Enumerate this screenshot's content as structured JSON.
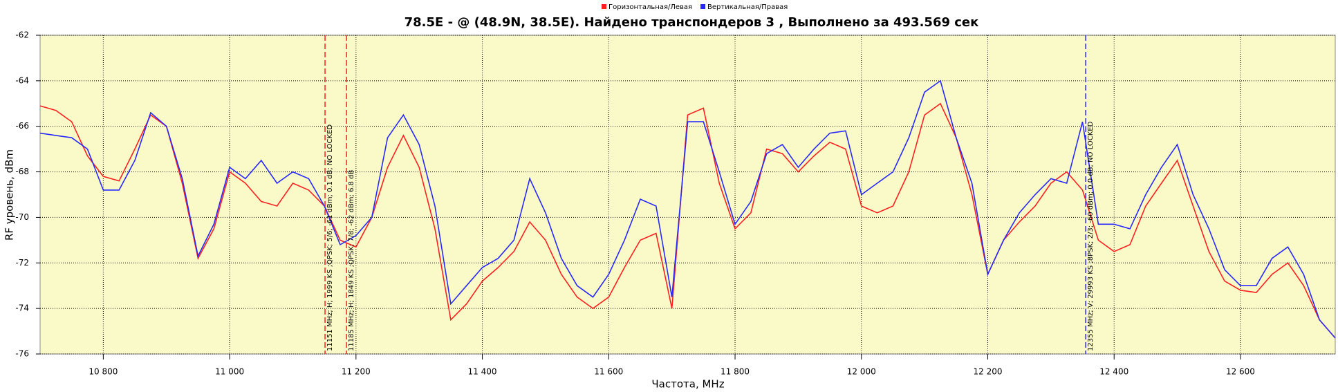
{
  "chart_data": {
    "type": "line",
    "title": "78.5E -  @  (48.9N, 38.5E). Найдено транспондеров 3 , Выполнено за 493.569 сек",
    "x_label": "Частота, MHz",
    "y_label": "RF уровень, dBm",
    "xlim": [
      10700,
      12750
    ],
    "ylim": [
      -76,
      -62
    ],
    "xticks": [
      {
        "value": 10800,
        "label": "10 800"
      },
      {
        "value": 11000,
        "label": "11 000"
      },
      {
        "value": 11200,
        "label": "11 200"
      },
      {
        "value": 11400,
        "label": "11 400"
      },
      {
        "value": 11600,
        "label": "11 600"
      },
      {
        "value": 11800,
        "label": "11 800"
      },
      {
        "value": 12000,
        "label": "12 000"
      },
      {
        "value": 12200,
        "label": "12 200"
      },
      {
        "value": 12400,
        "label": "12 400"
      },
      {
        "value": 12600,
        "label": "12 600"
      }
    ],
    "yticks": [
      -76,
      -74,
      -72,
      -70,
      -68,
      -66,
      -64,
      -62
    ],
    "grid": true,
    "background": "#fafac8",
    "legend": "top",
    "x": [
      10700,
      10725,
      10750,
      10775,
      10800,
      10825,
      10850,
      10875,
      10900,
      10925,
      10950,
      10975,
      11000,
      11025,
      11050,
      11075,
      11100,
      11125,
      11150,
      11175,
      11200,
      11225,
      11250,
      11275,
      11300,
      11325,
      11350,
      11375,
      11400,
      11425,
      11450,
      11475,
      11500,
      11525,
      11550,
      11575,
      11600,
      11625,
      11650,
      11675,
      11700,
      11725,
      11750,
      11775,
      11800,
      11825,
      11850,
      11875,
      11900,
      11925,
      11950,
      11975,
      12000,
      12025,
      12050,
      12075,
      12100,
      12125,
      12150,
      12175,
      12200,
      12225,
      12250,
      12275,
      12300,
      12325,
      12350,
      12375,
      12400,
      12425,
      12450,
      12475,
      12500,
      12525,
      12550,
      12575,
      12600,
      12625,
      12650,
      12675,
      12700,
      12725,
      12750
    ],
    "series": [
      {
        "name": "Горизонтальная/Левая",
        "color": "#ff2020",
        "values": [
          -65.1,
          -65.3,
          -65.8,
          -67.3,
          -68.2,
          -68.4,
          -67.0,
          -65.5,
          -66.0,
          -68.5,
          -71.8,
          -70.5,
          -68.0,
          -68.5,
          -69.3,
          -69.5,
          -68.5,
          -68.8,
          -69.5,
          -71.0,
          -71.3,
          -70.0,
          -67.8,
          -66.4,
          -67.8,
          -70.5,
          -74.5,
          -73.8,
          -72.8,
          -72.2,
          -71.5,
          -70.2,
          -71.0,
          -72.5,
          -73.5,
          -74.0,
          -73.5,
          -72.2,
          -71.0,
          -70.7,
          -74.0,
          -65.5,
          -65.2,
          -68.5,
          -70.5,
          -69.8,
          -67.0,
          -67.2,
          -68.0,
          -67.3,
          -66.7,
          -67.0,
          -69.5,
          -69.8,
          -69.5,
          -68.0,
          -65.5,
          -65.0,
          -66.5,
          -69.0,
          -72.5,
          -71.0,
          -70.2,
          -69.5,
          -68.5,
          -68.0,
          -68.8,
          -71.0,
          -71.5,
          -71.2,
          -69.5,
          -68.5,
          -67.5,
          -69.5,
          -71.5,
          -72.8,
          -73.2,
          -73.3,
          -72.5,
          -72.0,
          -73.0,
          -74.5,
          -75.3
        ]
      },
      {
        "name": "Вертикальная/Правая",
        "color": "#2828ff",
        "values": [
          -66.3,
          -66.4,
          -66.5,
          -67.0,
          -68.8,
          -68.8,
          -67.5,
          -65.4,
          -66.0,
          -68.3,
          -71.7,
          -70.3,
          -67.8,
          -68.3,
          -67.5,
          -68.5,
          -68.0,
          -68.3,
          -69.5,
          -71.2,
          -70.8,
          -70.0,
          -66.5,
          -65.5,
          -66.8,
          -69.5,
          -73.8,
          -73.0,
          -72.2,
          -71.8,
          -71.0,
          -68.3,
          -69.8,
          -71.8,
          -73.0,
          -73.5,
          -72.5,
          -71.0,
          -69.2,
          -69.5,
          -73.5,
          -65.8,
          -65.8,
          -68.0,
          -70.3,
          -69.3,
          -67.2,
          -66.8,
          -67.8,
          -67.0,
          -66.3,
          -66.2,
          -69.0,
          -68.5,
          -68.0,
          -66.5,
          -64.5,
          -64.0,
          -66.5,
          -68.5,
          -72.5,
          -71.0,
          -69.8,
          -69.0,
          -68.3,
          -68.5,
          -65.8,
          -70.3,
          -70.3,
          -70.5,
          -69.0,
          -67.8,
          -66.8,
          -69.0,
          -70.5,
          -72.3,
          -73.0,
          -73.0,
          -71.8,
          -71.3,
          -72.5,
          -74.5,
          -75.3
        ]
      }
    ],
    "markers": [
      {
        "x": 11151,
        "color": "#ff2020",
        "label": "11151 MHz; H; 1999 KS ;QPSK; 5/6; -61 dBm; 0.1 dB; NO LOCKED"
      },
      {
        "x": 11185,
        "color": "#ff2020",
        "label": "11185 MHz; H; 1849 KS ;QPSK; 7/8; -62 dBm; 6.8 dB"
      },
      {
        "x": 12355,
        "color": "#2828ff",
        "label": "12355 MHz; V; 29993 KS ;8PSK; 2/3; -60 dBm; 0.0 dB; NO LOCKED"
      }
    ]
  }
}
